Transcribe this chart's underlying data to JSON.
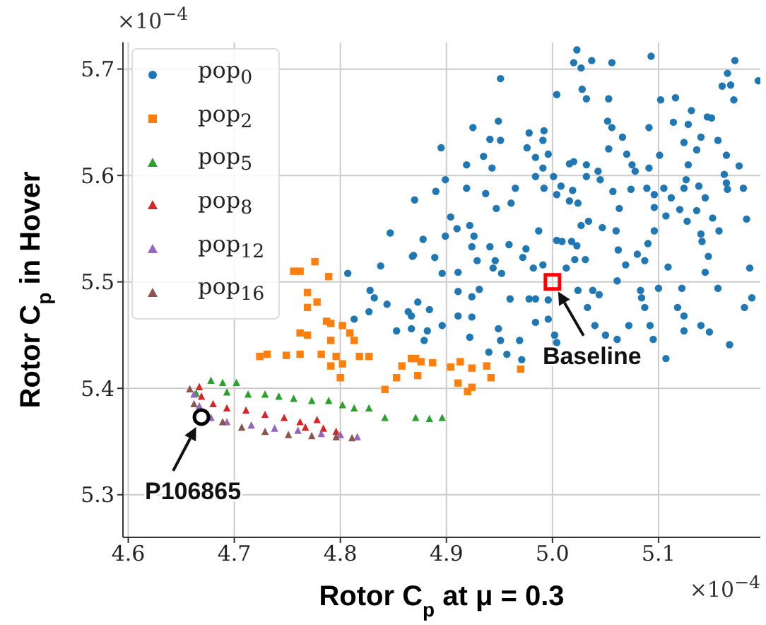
{
  "chart_data": {
    "type": "scatter",
    "xlabel": "Rotor C$_{p}$ at μ = 0.3",
    "ylabel": "Rotor C$_{p}$ in Hover",
    "xlim": [
      4.595,
      5.196
    ],
    "ylim": [
      5.26,
      5.725
    ],
    "xticks": [
      4.6,
      4.7,
      4.8,
      4.9,
      {
        "value": 5.0,
        "label": "5.0"
      },
      5.1
    ],
    "yticks": [
      5.3,
      5.4,
      5.5,
      5.6,
      5.7
    ],
    "grid": true,
    "legend": "top left",
    "annotations": [
      "×10$^{−4}$",
      "×10$^{−4}$",
      {
        "text": "Baseline",
        "x": 5.0,
        "y": 5.5
      },
      {
        "text": "P106865",
        "x": 4.669,
        "y": 5.373
      }
    ],
    "series": [
      {
        "name": "pop$_{0}$",
        "color": "#1f77b4",
        "marker": "circle",
        "x": [
          5.023,
          5.02,
          5.027,
          5.037,
          5.056,
          5.093,
          5.172,
          5.165,
          5.16,
          5.168,
          5.171,
          5.194,
          4.951,
          5.004,
          5.028,
          5.032,
          5.053,
          5.102,
          5.116,
          5.131,
          5.052,
          5.056,
          5.091,
          5.114,
          5.128,
          5.146,
          5.15,
          4.925,
          4.949,
          4.978,
          4.992,
          4.941,
          4.951,
          4.991,
          4.976,
          5.066,
          5.124,
          5.14,
          5.156,
          5.136,
          5.053,
          4.895,
          4.935,
          4.984,
          4.996,
          5.07,
          5.101,
          5.164,
          4.919,
          4.943,
          5.016,
          5.02,
          5.032,
          5.075,
          5.091,
          5.128,
          5.176,
          4.991,
          5.043,
          5.078,
          5.162,
          4.899,
          4.984,
          5.001,
          5.032,
          5.045,
          5.126,
          5.164,
          4.87,
          4.89,
          4.919,
          4.937,
          4.965,
          4.961,
          4.992,
          5.004,
          5.008,
          5.019,
          5.016,
          5.024,
          5.057,
          5.063,
          5.074,
          5.089,
          5.096,
          5.105,
          5.112,
          5.124,
          5.138,
          5.144,
          5.165,
          5.18,
          5.096,
          5.12,
          5.136,
          4.904,
          4.947,
          5.034,
          5.027,
          5.047,
          5.06,
          5.096,
          5.107,
          5.127,
          5.151,
          5.183,
          5.157,
          5.14,
          4.91,
          4.922,
          4.899,
          4.926,
          4.924,
          4.878,
          4.987,
          4.959,
          4.941,
          4.975,
          5.004,
          5.009,
          5.018,
          5.023,
          5.09,
          5.08,
          5.147,
          5.141,
          4.929,
          4.946,
          4.972,
          4.982,
          4.991,
          5.021,
          5.031,
          5.013,
          5.069,
          5.087,
          5.109,
          5.144,
          5.186,
          4.868,
          4.889,
          4.896,
          4.911,
          4.944,
          4.952,
          4.873,
          4.884,
          4.867,
          4.896,
          4.882,
          4.911,
          4.924,
          4.931,
          4.911,
          4.924,
          4.949,
          4.951,
          4.922,
          4.94,
          4.957,
          4.969,
          4.971,
          4.96,
          4.978,
          4.984,
          4.996,
          4.996,
          5.002,
          5.004,
          4.984,
          5.024,
          5.038,
          5.044,
          5.033,
          5.04,
          5.05,
          5.061,
          5.072,
          5.083,
          5.084,
          5.087,
          5.092,
          5.095,
          5.1,
          5.107,
          5.118,
          5.122,
          5.124,
          5.124,
          5.14,
          5.148,
          5.156,
          5.167,
          5.181,
          5.188,
          5.061,
          5.062,
          4.807,
          4.838,
          4.828,
          4.813,
          4.827,
          4.844,
          4.853,
          4.867,
          4.869,
          4.879,
          4.832,
          4.864,
          4.847
        ],
        "values": [
          5.718,
          5.706,
          5.701,
          5.708,
          5.706,
          5.712,
          5.708,
          5.696,
          5.684,
          5.685,
          5.671,
          5.689,
          5.691,
          5.676,
          5.681,
          5.672,
          5.672,
          5.671,
          5.673,
          5.661,
          5.651,
          5.645,
          5.645,
          5.65,
          5.648,
          5.655,
          5.654,
          5.645,
          5.651,
          5.64,
          5.642,
          5.634,
          5.633,
          5.633,
          5.626,
          5.636,
          5.631,
          5.636,
          5.633,
          5.624,
          5.625,
          5.626,
          5.618,
          5.617,
          5.62,
          5.62,
          5.619,
          5.619,
          5.61,
          5.607,
          5.611,
          5.613,
          5.61,
          5.61,
          5.607,
          5.61,
          5.609,
          5.607,
          5.604,
          5.604,
          5.601,
          5.596,
          5.599,
          5.599,
          5.599,
          5.596,
          5.596,
          5.593,
          5.577,
          5.585,
          5.588,
          5.583,
          5.588,
          5.574,
          5.588,
          5.582,
          5.59,
          5.586,
          5.576,
          5.574,
          5.585,
          5.569,
          5.587,
          5.588,
          5.582,
          5.588,
          5.579,
          5.588,
          5.59,
          5.579,
          5.587,
          5.588,
          5.57,
          5.568,
          5.567,
          5.561,
          5.569,
          5.557,
          5.553,
          5.551,
          5.548,
          5.548,
          5.562,
          5.557,
          5.56,
          5.559,
          5.548,
          5.545,
          5.55,
          5.553,
          5.543,
          5.543,
          5.533,
          5.54,
          5.548,
          5.535,
          5.533,
          5.531,
          5.539,
          5.538,
          5.538,
          5.534,
          5.536,
          5.526,
          5.524,
          5.538,
          5.52,
          5.52,
          5.523,
          5.513,
          5.516,
          5.521,
          5.521,
          5.513,
          5.516,
          5.52,
          5.514,
          5.509,
          5.513,
          5.524,
          5.523,
          5.508,
          5.509,
          5.513,
          5.508,
          5.481,
          5.474,
          5.468,
          5.459,
          5.454,
          5.491,
          5.486,
          5.493,
          5.468,
          5.467,
          5.456,
          5.445,
          5.448,
          5.434,
          5.432,
          5.445,
          5.427,
          5.484,
          5.484,
          5.484,
          5.483,
          5.465,
          5.45,
          5.443,
          5.462,
          5.492,
          5.492,
          5.488,
          5.476,
          5.459,
          5.45,
          5.446,
          5.459,
          5.492,
          5.485,
          5.476,
          5.459,
          5.446,
          5.494,
          5.428,
          5.476,
          5.494,
          5.468,
          5.454,
          5.459,
          5.453,
          5.494,
          5.441,
          5.476,
          5.485,
          5.501,
          5.53,
          5.508,
          5.515,
          5.492,
          5.465,
          5.472,
          5.479,
          5.454,
          5.456,
          5.525,
          5.445,
          5.485,
          5.472,
          5.546
        ]
      },
      {
        "name": "pop$_{2}$",
        "color": "#ff7f0e",
        "marker": "square",
        "x": [
          4.756,
          4.762,
          4.776,
          4.789,
          4.769,
          4.778,
          4.769,
          4.762,
          4.769,
          4.787,
          4.791,
          4.802,
          4.809,
          4.791,
          4.813,
          4.782,
          4.796,
          4.802,
          4.791,
          4.818,
          4.827,
          4.724,
          4.731,
          4.749,
          4.762,
          4.8,
          4.842,
          4.858,
          4.867,
          4.853,
          4.876,
          4.871,
          4.887,
          4.873,
          4.904,
          4.913,
          4.924,
          4.938,
          4.97,
          4.911,
          4.924,
          4.92,
          4.942
        ],
        "values": [
          5.51,
          5.51,
          5.519,
          5.505,
          5.49,
          5.481,
          5.476,
          5.452,
          5.45,
          5.463,
          5.461,
          5.459,
          5.452,
          5.445,
          5.445,
          5.432,
          5.43,
          5.423,
          5.421,
          5.43,
          5.43,
          5.43,
          5.432,
          5.431,
          5.432,
          5.41,
          5.399,
          5.421,
          5.428,
          5.41,
          5.425,
          5.428,
          5.424,
          5.412,
          5.42,
          5.425,
          5.419,
          5.421,
          5.418,
          5.405,
          5.401,
          5.397,
          5.41
        ]
      },
      {
        "name": "pop$_{5}$",
        "color": "#2ca02c",
        "marker": "triangle",
        "x": [
          4.664,
          4.678,
          4.689,
          4.693,
          4.702,
          4.713,
          4.729,
          4.742,
          4.756,
          4.773,
          4.789,
          4.802,
          4.813,
          4.827,
          4.842,
          4.871,
          4.884,
          4.896
        ],
        "values": [
          5.395,
          5.407,
          5.405,
          5.396,
          5.405,
          5.394,
          5.394,
          5.392,
          5.39,
          5.388,
          5.388,
          5.384,
          5.381,
          5.381,
          5.372,
          5.372,
          5.371,
          5.372
        ]
      },
      {
        "name": "pop$_{8}$",
        "color": "#d62728",
        "marker": "triangle",
        "x": [
          4.667,
          4.669,
          4.68,
          4.693,
          4.711,
          4.729,
          4.747,
          4.762,
          4.767,
          4.778,
          4.784,
          4.796
        ],
        "values": [
          5.401,
          5.392,
          5.385,
          5.381,
          5.379,
          5.375,
          5.372,
          5.368,
          5.363,
          5.37,
          5.362,
          5.359
        ]
      },
      {
        "name": "pop$_{12}$",
        "color": "#9467bd",
        "marker": "triangle",
        "x": [
          4.662,
          4.667,
          4.678,
          4.693,
          4.716,
          4.738,
          4.76,
          4.782,
          4.8,
          4.816
        ],
        "values": [
          5.394,
          5.383,
          5.372,
          5.368,
          5.365,
          5.362,
          5.36,
          5.357,
          5.356,
          5.354
        ]
      },
      {
        "name": "pop$_{16}$",
        "color": "#8c564b",
        "marker": "triangle",
        "x": [
          4.658,
          4.662,
          4.676,
          4.689,
          4.707,
          4.729,
          4.751,
          4.773,
          4.796,
          4.811
        ],
        "values": [
          5.399,
          5.385,
          null,
          5.368,
          5.363,
          5.359,
          5.356,
          5.355,
          5.354,
          5.353
        ]
      },
      {
        "color": "#ff0000",
        "marker": "square",
        "x": [
          5.0
        ],
        "values": [
          5.5
        ]
      },
      {
        "color": "#000000",
        "marker": "circle",
        "x": [
          4.669
        ],
        "values": [
          5.373
        ]
      }
    ]
  }
}
